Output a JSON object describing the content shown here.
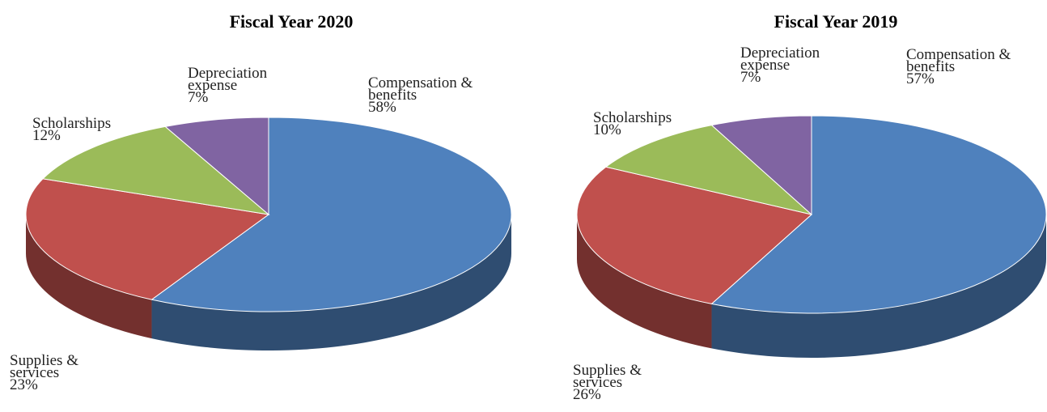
{
  "chart_data": [
    {
      "type": "pie",
      "title": "Fiscal Year 2020",
      "categories": [
        "Compensation & benefits",
        "Supplies & services",
        "Scholarships",
        "Depreciation expense"
      ],
      "values": [
        58,
        23,
        12,
        7
      ],
      "value_labels": [
        "58%",
        "23%",
        "12%",
        "7%"
      ],
      "colors": [
        "#4f81bd",
        "#c0504d",
        "#9bbb59",
        "#8064a2"
      ]
    },
    {
      "type": "pie",
      "title": "Fiscal Year 2019",
      "categories": [
        "Compensation & benefits",
        "Supplies & services",
        "Scholarships",
        "Depreciation expense"
      ],
      "values": [
        57,
        26,
        10,
        7
      ],
      "value_labels": [
        "57%",
        "26%",
        "10%",
        "7%"
      ],
      "colors": [
        "#4f81bd",
        "#c0504d",
        "#9bbb59",
        "#8064a2"
      ]
    }
  ]
}
